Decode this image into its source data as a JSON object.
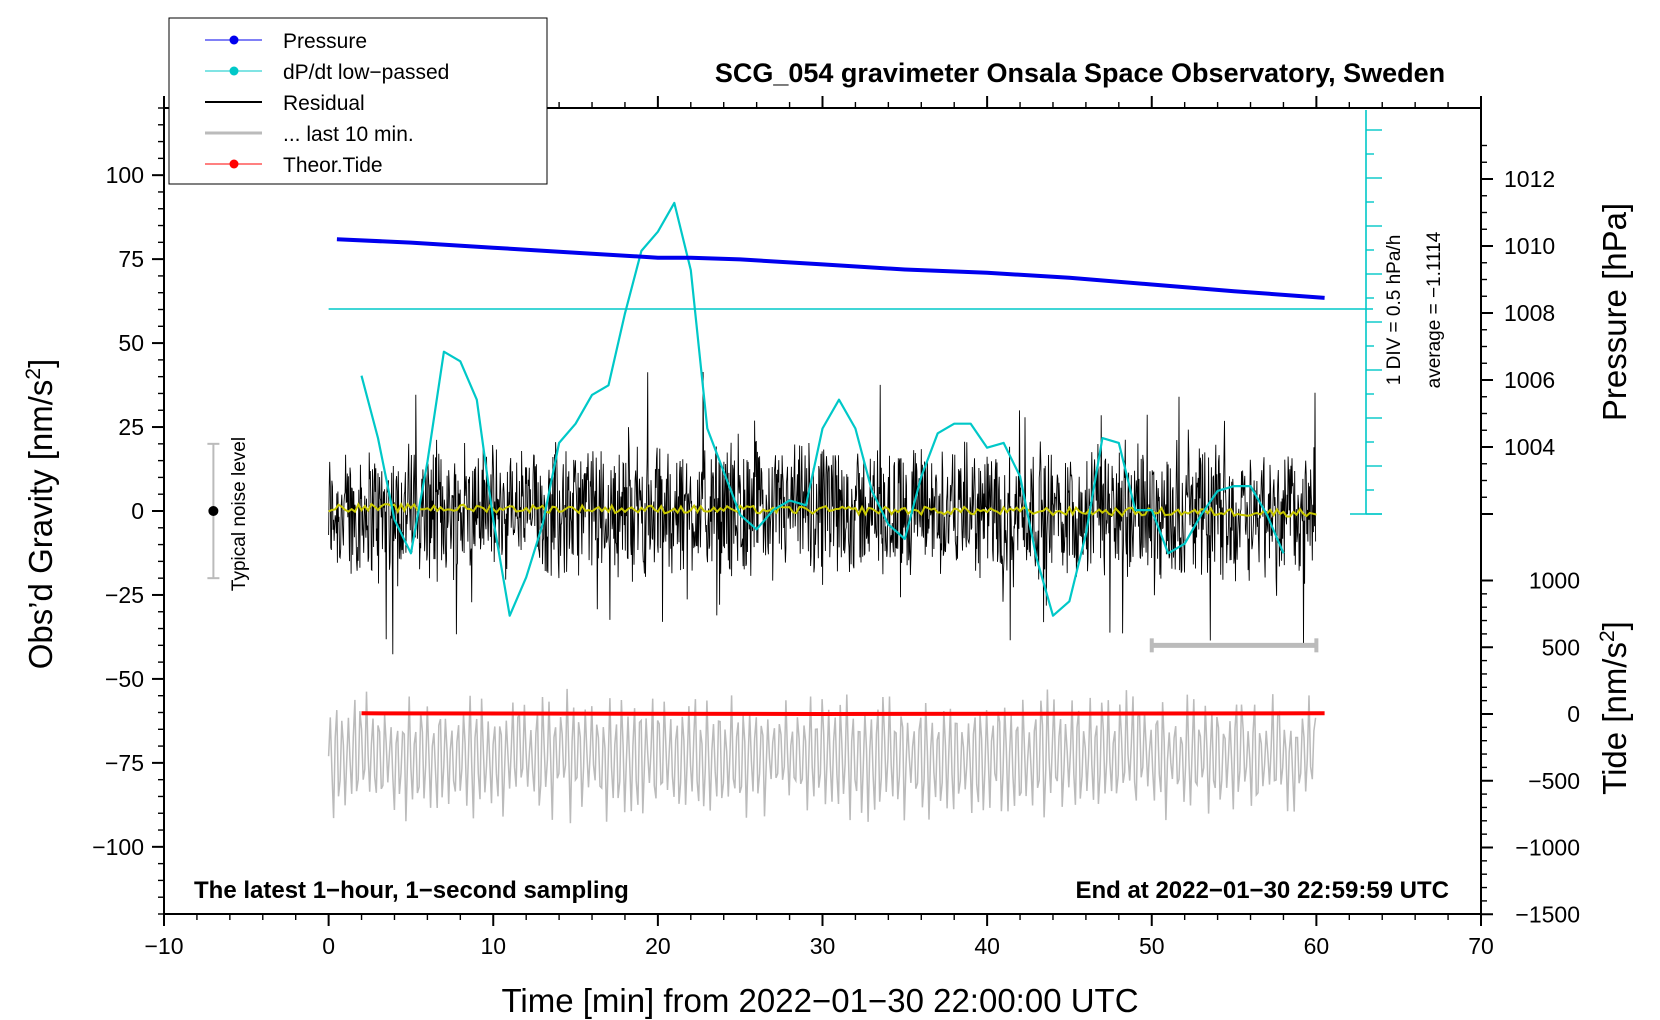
{
  "chart_data": {
    "type": "line",
    "title": "SCG_054 gravimeter Onsala Space Observatory, Sweden",
    "xlabel": "Time [min] from 2022−01−30 22:00:00 UTC",
    "ylabel_left": "Obs’d Gravity [nm/s",
    "ylabel_left_sup": "2",
    "ylabel_left_close": "]",
    "ylabel_right_pressure": "Pressure [hPa]",
    "ylabel_right_tide": "Tide [nm/s",
    "ylabel_right_tide_sup": "2",
    "ylabel_right_tide_close": "]",
    "xlim": [
      -10,
      70
    ],
    "ylim": [
      -120,
      120
    ],
    "x_ticks": [
      -10,
      0,
      10,
      20,
      30,
      40,
      50,
      60,
      70
    ],
    "x_tick_labels": [
      "−10",
      "0",
      "10",
      "20",
      "30",
      "40",
      "50",
      "60",
      "70"
    ],
    "y_ticks": [
      100,
      75,
      50,
      25,
      0,
      -25,
      -50,
      -75,
      -100
    ],
    "y_tick_labels": [
      "100",
      "75",
      "50",
      "25",
      "0",
      "−25",
      "−50",
      "−75",
      "−100"
    ],
    "pressure_axis": {
      "ticks": [
        1012,
        1010,
        1008,
        1006,
        1004
      ],
      "tick_labels": [
        "1012",
        "1010",
        "1008",
        "1006",
        "1004"
      ]
    },
    "tide_axis": {
      "ticks": [
        1000,
        500,
        0,
        -500,
        -1000,
        -1500
      ],
      "tick_labels": [
        "1000",
        "500",
        "0",
        "−500",
        "−1000",
        "−1500"
      ]
    },
    "legend": [
      {
        "label": "Pressure",
        "color": "#0000ee",
        "marker": true
      },
      {
        "label": "dP/dt low−passed",
        "color": "#00c8c8",
        "marker": true
      },
      {
        "label": "Residual",
        "color": "#000000",
        "marker": false
      },
      {
        "label": "... last 10 min.",
        "color": "#bbbbbb",
        "marker": false
      },
      {
        "label": "Theor.Tide",
        "color": "#ff0000",
        "marker": true
      }
    ],
    "series": [
      {
        "name": "Pressure",
        "color": "#0000ee",
        "axis": "pressure",
        "x": [
          0.5,
          5,
          10,
          15,
          20,
          22,
          25,
          30,
          35,
          40,
          45,
          50,
          55,
          60.5
        ],
        "y": [
          1010.2,
          1010.1,
          1009.95,
          1009.8,
          1009.65,
          1009.65,
          1009.6,
          1009.45,
          1009.3,
          1009.2,
          1009.05,
          1008.85,
          1008.65,
          1008.45
        ]
      },
      {
        "name": "dP/dt low-passed",
        "color": "#00c8c8",
        "axis": "dpdt",
        "baseline": -1.1114,
        "div_per_unit": 0.5,
        "x": [
          2,
          3,
          4,
          5,
          6,
          7,
          8,
          9,
          10,
          11,
          12,
          13,
          14,
          15,
          16,
          17,
          18,
          19,
          20,
          21,
          22,
          23,
          24,
          25,
          26,
          27,
          28,
          29,
          30,
          31,
          32,
          33,
          34,
          35,
          36,
          37,
          38,
          39,
          40,
          41,
          42,
          43,
          44,
          45,
          46,
          47,
          48,
          49,
          50,
          51,
          52,
          53,
          54,
          55,
          56,
          57,
          58
        ],
        "y": [
          -2.5,
          -3.8,
          -5.5,
          -6.2,
          -4.3,
          -2.0,
          -2.2,
          -3.0,
          -5.5,
          -7.5,
          -6.7,
          -5.6,
          -3.9,
          -3.5,
          -2.9,
          -2.7,
          -1.2,
          0.1,
          0.5,
          1.1,
          -0.3,
          -3.6,
          -4.5,
          -5.4,
          -5.7,
          -5.3,
          -5.1,
          -5.2,
          -3.6,
          -3.0,
          -3.6,
          -4.9,
          -5.6,
          -5.9,
          -4.6,
          -3.7,
          -3.5,
          -3.5,
          -4.0,
          -3.9,
          -4.6,
          -6.3,
          -7.5,
          -7.2,
          -5.8,
          -3.8,
          -3.9,
          -5.3,
          -5.3,
          -6.2,
          -6.0,
          -5.4,
          -4.9,
          -4.8,
          -4.8,
          -5.4,
          -6.2
        ]
      },
      {
        "name": "Residual",
        "color": "#000000",
        "axis": "gravity",
        "x_range": [
          0,
          59.95
        ],
        "noise_amplitude": 20
      },
      {
        "name": "Residual smoothed",
        "color": "#c8c800",
        "axis": "gravity",
        "x": [
          0,
          10,
          20,
          30,
          40,
          50,
          60
        ],
        "y": [
          1,
          0.5,
          0,
          0,
          0,
          -0.5,
          -1
        ]
      },
      {
        "name": "... last 10 min.",
        "color": "#bbbbbb",
        "axis": "gravity",
        "x_range": [
          0,
          59.95
        ],
        "center": -73,
        "amplitude": 17
      },
      {
        "name": "Theor.Tide",
        "color": "#ff0000",
        "axis": "tide",
        "x": [
          2,
          30,
          60.5
        ],
        "y": [
          5,
          0,
          5
        ]
      }
    ],
    "noise_level": {
      "label": "Typical noise level",
      "x": -7,
      "center": 0,
      "half_range": 20
    },
    "last_10_bar": {
      "from": 50,
      "to": 60,
      "y": -40
    },
    "dpdt_scale": {
      "label1": "1 DIV = 0.5 hPa/h",
      "label2": "average = −1.1114"
    },
    "notes": {
      "left": "The latest 1−hour, 1−second sampling",
      "right": "End at 2022−01−30 22:59:59 UTC"
    }
  }
}
